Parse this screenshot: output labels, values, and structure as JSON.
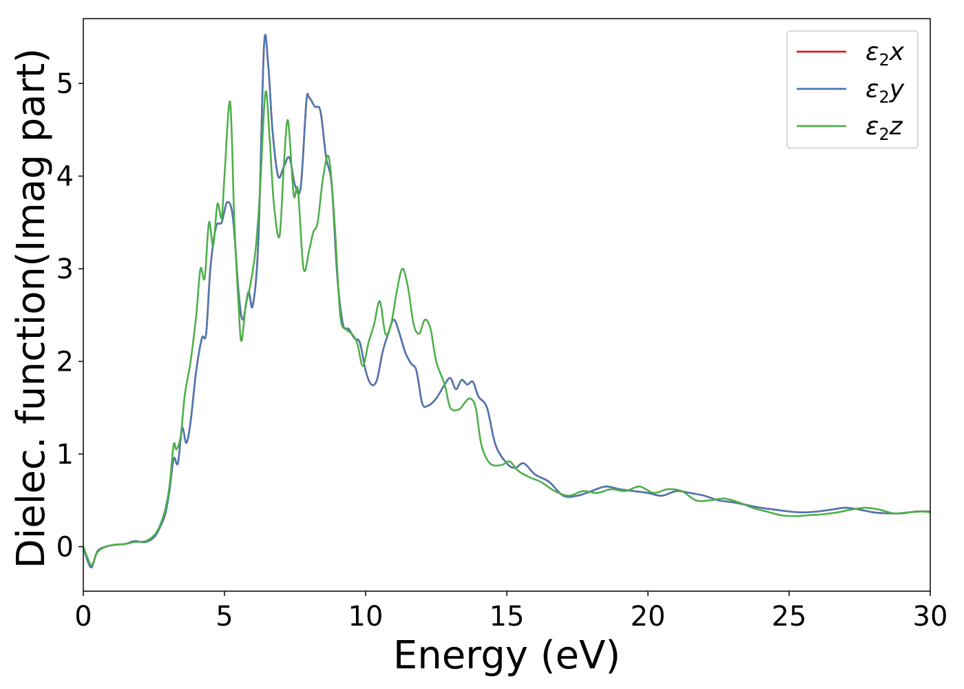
{
  "chart_data": {
    "type": "line",
    "title": "",
    "xlabel": "Energy (eV)",
    "ylabel": "Dielec. function(Imag part)",
    "xlim": [
      0,
      30
    ],
    "ylim": [
      -0.48,
      5.7
    ],
    "xticks": [
      0,
      5,
      10,
      15,
      20,
      25,
      30
    ],
    "yticks": [
      0,
      1,
      2,
      3,
      4,
      5
    ],
    "legend_position": "top-right",
    "grid": false,
    "series": [
      {
        "name": "ε2x",
        "legend_base": "ε",
        "legend_sub": "2",
        "legend_var": "x",
        "color": "#e41a1c",
        "x": [
          0,
          0.15,
          0.3,
          0.5,
          0.8,
          1.1,
          1.5,
          1.8,
          2.2,
          2.5,
          2.7,
          2.9,
          3.05,
          3.2,
          3.35,
          3.5,
          3.65,
          3.8,
          4.0,
          4.2,
          4.35,
          4.5,
          4.7,
          4.9,
          5.1,
          5.3,
          5.5,
          5.65,
          5.85,
          6.0,
          6.2,
          6.4,
          6.55,
          6.7,
          6.9,
          7.1,
          7.3,
          7.5,
          7.7,
          7.9,
          8.0,
          8.2,
          8.4,
          8.6,
          8.8,
          9.0,
          9.2,
          9.4,
          9.6,
          9.8,
          10.0,
          10.2,
          10.4,
          10.6,
          10.8,
          11.0,
          11.2,
          11.4,
          11.6,
          11.8,
          12.0,
          12.2,
          12.5,
          12.8,
          13.0,
          13.2,
          13.4,
          13.6,
          13.8,
          14.0,
          14.3,
          14.6,
          15.0,
          15.3,
          15.6,
          16.0,
          16.5,
          17.0,
          17.5,
          18.0,
          18.5,
          19.0,
          19.5,
          20.0,
          20.5,
          21.0,
          21.5,
          22.0,
          22.5,
          23.0,
          23.5,
          24.0,
          24.5,
          25.0,
          25.5,
          26.0,
          26.5,
          27.0,
          27.5,
          28.0,
          28.5,
          29.0,
          29.5,
          30.0
        ],
        "y": [
          0,
          -0.15,
          -0.22,
          -0.05,
          0,
          0.02,
          0.03,
          0.06,
          0.05,
          0.1,
          0.2,
          0.35,
          0.6,
          0.95,
          0.9,
          1.28,
          1.12,
          1.35,
          1.9,
          2.25,
          2.3,
          3.0,
          3.45,
          3.5,
          3.72,
          3.55,
          2.75,
          2.45,
          2.75,
          2.6,
          3.3,
          5.4,
          5.2,
          4.5,
          4.0,
          4.1,
          4.2,
          3.9,
          3.88,
          4.8,
          4.85,
          4.75,
          4.7,
          4.2,
          3.9,
          2.9,
          2.4,
          2.35,
          2.25,
          2.2,
          1.9,
          1.75,
          1.8,
          2.1,
          2.3,
          2.45,
          2.3,
          2.1,
          1.98,
          1.9,
          1.55,
          1.52,
          1.6,
          1.75,
          1.82,
          1.7,
          1.8,
          1.75,
          1.78,
          1.62,
          1.5,
          1.1,
          0.9,
          0.85,
          0.9,
          0.78,
          0.7,
          0.55,
          0.55,
          0.6,
          0.65,
          0.62,
          0.6,
          0.58,
          0.55,
          0.6,
          0.58,
          0.55,
          0.5,
          0.48,
          0.45,
          0.42,
          0.4,
          0.38,
          0.37,
          0.38,
          0.4,
          0.42,
          0.4,
          0.37,
          0.36,
          0.36,
          0.38,
          0.38
        ]
      },
      {
        "name": "ε2y",
        "legend_base": "ε",
        "legend_sub": "2",
        "legend_var": "y",
        "color": "#4c78b0",
        "x": [
          0,
          0.15,
          0.3,
          0.5,
          0.8,
          1.1,
          1.5,
          1.8,
          2.2,
          2.5,
          2.7,
          2.9,
          3.05,
          3.2,
          3.35,
          3.5,
          3.65,
          3.8,
          4.0,
          4.2,
          4.35,
          4.5,
          4.7,
          4.9,
          5.1,
          5.3,
          5.5,
          5.65,
          5.85,
          6.0,
          6.2,
          6.4,
          6.55,
          6.7,
          6.9,
          7.1,
          7.3,
          7.5,
          7.7,
          7.9,
          8.0,
          8.2,
          8.4,
          8.6,
          8.8,
          9.0,
          9.2,
          9.4,
          9.6,
          9.8,
          10.0,
          10.2,
          10.4,
          10.6,
          10.8,
          11.0,
          11.2,
          11.4,
          11.6,
          11.8,
          12.0,
          12.2,
          12.5,
          12.8,
          13.0,
          13.2,
          13.4,
          13.6,
          13.8,
          14.0,
          14.3,
          14.6,
          15.0,
          15.3,
          15.6,
          16.0,
          16.5,
          17.0,
          17.5,
          18.0,
          18.5,
          19.0,
          19.5,
          20.0,
          20.5,
          21.0,
          21.5,
          22.0,
          22.5,
          23.0,
          23.5,
          24.0,
          24.5,
          25.0,
          25.5,
          26.0,
          26.5,
          27.0,
          27.5,
          28.0,
          28.5,
          29.0,
          29.5,
          30.0
        ],
        "y": [
          0,
          -0.15,
          -0.22,
          -0.05,
          0,
          0.02,
          0.03,
          0.06,
          0.05,
          0.1,
          0.2,
          0.35,
          0.6,
          0.95,
          0.9,
          1.28,
          1.12,
          1.35,
          1.9,
          2.25,
          2.3,
          3.0,
          3.45,
          3.5,
          3.72,
          3.55,
          2.75,
          2.45,
          2.75,
          2.6,
          3.3,
          5.4,
          5.2,
          4.5,
          4.0,
          4.1,
          4.2,
          3.9,
          3.88,
          4.8,
          4.85,
          4.75,
          4.7,
          4.2,
          3.9,
          2.9,
          2.4,
          2.35,
          2.25,
          2.2,
          1.9,
          1.75,
          1.8,
          2.1,
          2.3,
          2.45,
          2.3,
          2.1,
          1.98,
          1.9,
          1.55,
          1.52,
          1.6,
          1.75,
          1.82,
          1.7,
          1.8,
          1.75,
          1.78,
          1.62,
          1.5,
          1.1,
          0.9,
          0.85,
          0.9,
          0.78,
          0.7,
          0.55,
          0.55,
          0.6,
          0.65,
          0.62,
          0.6,
          0.58,
          0.55,
          0.6,
          0.58,
          0.55,
          0.5,
          0.48,
          0.45,
          0.42,
          0.4,
          0.38,
          0.37,
          0.38,
          0.4,
          0.42,
          0.4,
          0.37,
          0.36,
          0.36,
          0.38,
          0.38
        ]
      },
      {
        "name": "ε2z",
        "legend_base": "ε",
        "legend_sub": "2",
        "legend_var": "z",
        "color": "#4daf4a",
        "x": [
          0,
          0.15,
          0.3,
          0.5,
          0.8,
          1.1,
          1.5,
          1.8,
          2.2,
          2.5,
          2.7,
          2.9,
          3.05,
          3.2,
          3.3,
          3.45,
          3.6,
          3.8,
          4.0,
          4.15,
          4.3,
          4.45,
          4.6,
          4.75,
          4.9,
          5.0,
          5.2,
          5.35,
          5.5,
          5.6,
          5.75,
          5.9,
          6.1,
          6.25,
          6.45,
          6.6,
          6.75,
          6.95,
          7.1,
          7.25,
          7.45,
          7.6,
          7.8,
          8.0,
          8.15,
          8.3,
          8.5,
          8.7,
          8.9,
          9.1,
          9.3,
          9.5,
          9.7,
          9.9,
          10.1,
          10.3,
          10.5,
          10.7,
          10.9,
          11.1,
          11.3,
          11.5,
          11.7,
          11.9,
          12.1,
          12.3,
          12.5,
          12.8,
          13.0,
          13.3,
          13.5,
          13.7,
          13.9,
          14.1,
          14.4,
          14.8,
          15.1,
          15.4,
          15.8,
          16.2,
          16.7,
          17.2,
          17.7,
          18.2,
          18.7,
          19.2,
          19.7,
          20.2,
          20.7,
          21.2,
          21.7,
          22.2,
          22.7,
          23.2,
          23.7,
          24.2,
          24.7,
          25.2,
          25.7,
          26.2,
          26.7,
          27.2,
          27.7,
          28.2,
          28.7,
          29.2,
          29.7,
          30.0
        ],
        "y": [
          0,
          -0.12,
          -0.2,
          -0.06,
          0,
          0.02,
          0.03,
          0.05,
          0.06,
          0.12,
          0.22,
          0.4,
          0.65,
          1.1,
          1.05,
          1.2,
          1.65,
          2.0,
          2.5,
          3.0,
          2.9,
          3.5,
          3.25,
          3.7,
          3.55,
          4.0,
          4.8,
          3.5,
          2.6,
          2.22,
          2.6,
          2.8,
          3.2,
          3.8,
          4.9,
          4.4,
          3.7,
          3.35,
          4.1,
          4.6,
          3.8,
          3.85,
          3.0,
          3.2,
          3.4,
          3.5,
          4.0,
          4.2,
          3.5,
          2.5,
          2.35,
          2.3,
          2.2,
          1.95,
          2.2,
          2.4,
          2.65,
          2.3,
          2.4,
          2.75,
          3.0,
          2.8,
          2.4,
          2.3,
          2.45,
          2.35,
          2.0,
          1.75,
          1.5,
          1.48,
          1.55,
          1.6,
          1.5,
          1.1,
          0.9,
          0.88,
          0.92,
          0.82,
          0.75,
          0.7,
          0.6,
          0.55,
          0.6,
          0.58,
          0.62,
          0.6,
          0.65,
          0.58,
          0.62,
          0.6,
          0.5,
          0.5,
          0.52,
          0.48,
          0.42,
          0.38,
          0.34,
          0.33,
          0.34,
          0.35,
          0.37,
          0.4,
          0.42,
          0.4,
          0.36,
          0.37,
          0.38,
          0.37
        ]
      }
    ]
  }
}
